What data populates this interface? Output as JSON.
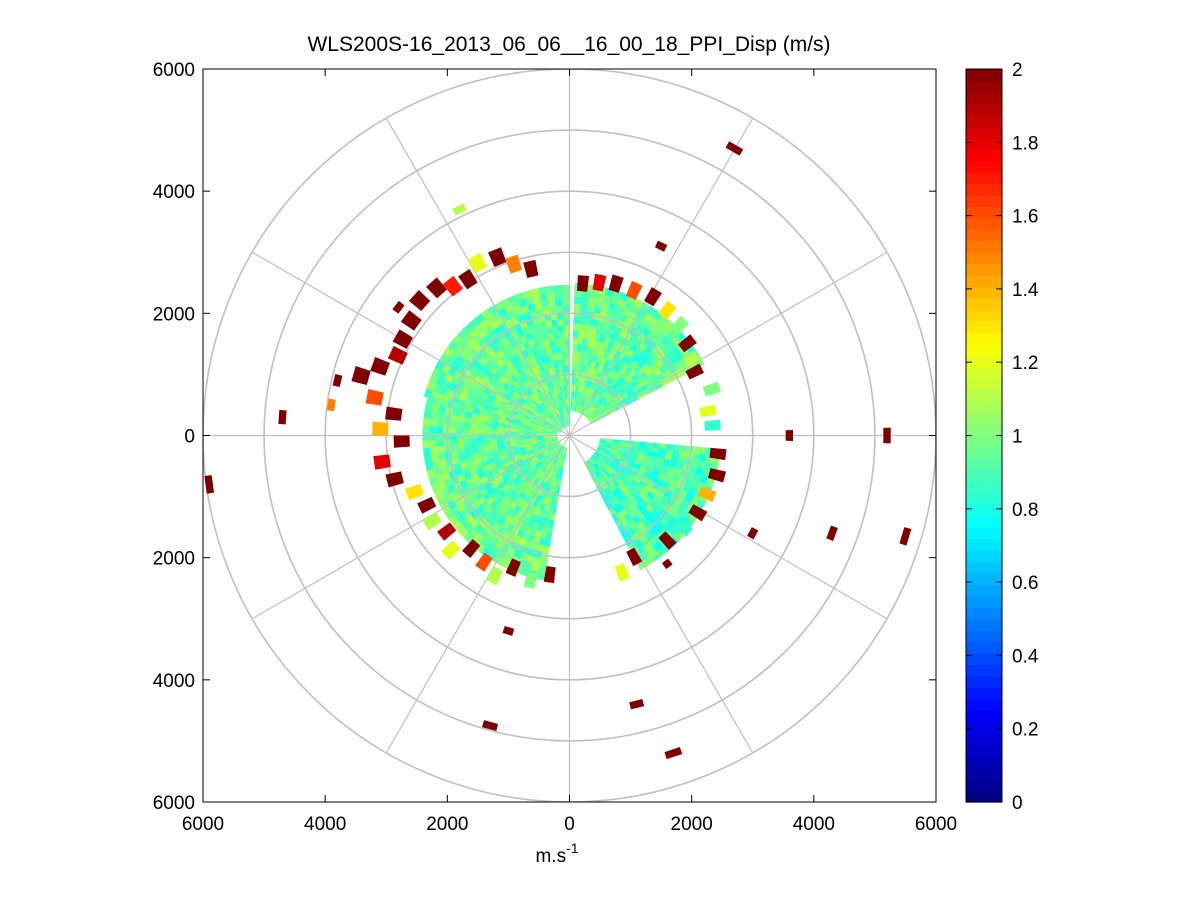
{
  "chart_data": {
    "type": "heatmap",
    "subtype": "polar-ppi-scan",
    "title": "WLS200S-16_2013_06_06__16_00_18_PPI_Disp (m/s)",
    "xlabel": "m.s",
    "xlabel_superscript": "-1",
    "ylabel": "",
    "xlim": [
      -6000,
      6000
    ],
    "ylim": [
      -6000,
      6000
    ],
    "x_tick_values": [
      -6000,
      -4000,
      -2000,
      0,
      2000,
      4000,
      6000
    ],
    "x_tick_labels": [
      "6000",
      "4000",
      "2000",
      "0",
      "2000",
      "4000",
      "6000"
    ],
    "y_tick_values": [
      6000,
      4000,
      2000,
      0,
      -2000,
      -4000,
      -6000
    ],
    "y_tick_labels": [
      "6000",
      "4000",
      "2000",
      "0",
      "2000",
      "4000",
      "6000"
    ],
    "range_rings": [
      1000,
      2000,
      3000,
      4000,
      5000,
      6000
    ],
    "spokes_deg": [
      0,
      30,
      60,
      90,
      120,
      150,
      180,
      210,
      240,
      270,
      300,
      330
    ],
    "colorbar": {
      "colormap": "jet",
      "min": 0,
      "max": 2,
      "tick_values": [
        0,
        0.2,
        0.4,
        0.6,
        0.8,
        1,
        1.2,
        1.4,
        1.6,
        1.8,
        2
      ],
      "tick_labels": [
        "0",
        "0.2",
        "0.4",
        "0.6",
        "0.8",
        "1",
        "1.2",
        "1.4",
        "1.6",
        "1.8",
        "2"
      ]
    },
    "main_field": {
      "description": "dense near-field returns, typical value",
      "typical_value": 0.95,
      "sectors": [
        {
          "az_start": 285,
          "az_end": 358,
          "r_min": 150,
          "r_max": 2400,
          "value": 0.95
        },
        {
          "az_start": 2,
          "az_end": 60,
          "r_min": 400,
          "r_max": 2400,
          "value": 0.95
        },
        {
          "az_start": 95,
          "az_end": 150,
          "r_min": 500,
          "r_max": 2400,
          "value": 0.9
        },
        {
          "az_start": 190,
          "az_end": 285,
          "r_min": 200,
          "r_max": 2400,
          "value": 0.95
        }
      ]
    },
    "edge_cells": [
      {
        "az": 300,
        "r": 3150,
        "value": 2.0
      },
      {
        "az": 306,
        "r": 3200,
        "value": 2.0
      },
      {
        "az": 312,
        "r": 3300,
        "value": 2.0
      },
      {
        "az": 318,
        "r": 3250,
        "value": 2.0
      },
      {
        "az": 322,
        "r": 3100,
        "value": 1.7
      },
      {
        "az": 327,
        "r": 3050,
        "value": 2.0
      },
      {
        "az": 332,
        "r": 3200,
        "value": 1.2
      },
      {
        "az": 338,
        "r": 3150,
        "value": 2.0
      },
      {
        "az": 342,
        "r": 2950,
        "value": 1.5
      },
      {
        "az": 347,
        "r": 2800,
        "value": 2.0
      },
      {
        "az": 295,
        "r": 3100,
        "value": 1.9
      },
      {
        "az": 290,
        "r": 3300,
        "value": 2.0
      },
      {
        "az": 286,
        "r": 3550,
        "value": 2.0
      },
      {
        "az": 281,
        "r": 3250,
        "value": 1.6
      },
      {
        "az": 277,
        "r": 2900,
        "value": 2.0
      },
      {
        "az": 272,
        "r": 3100,
        "value": 1.4
      },
      {
        "az": 268,
        "r": 2750,
        "value": 2.0
      },
      {
        "az": 262,
        "r": 3100,
        "value": 1.8
      },
      {
        "az": 256,
        "r": 2950,
        "value": 2.0
      },
      {
        "az": 250,
        "r": 2700,
        "value": 1.3
      },
      {
        "az": 244,
        "r": 2600,
        "value": 2.0
      },
      {
        "az": 238,
        "r": 2650,
        "value": 1.1
      },
      {
        "az": 232,
        "r": 2550,
        "value": 1.9
      },
      {
        "az": 226,
        "r": 2700,
        "value": 1.2
      },
      {
        "az": 221,
        "r": 2450,
        "value": 2.0
      },
      {
        "az": 214,
        "r": 2500,
        "value": 1.6
      },
      {
        "az": 208,
        "r": 2600,
        "value": 1.1
      },
      {
        "az": 203,
        "r": 2350,
        "value": 2.0
      },
      {
        "az": 5,
        "r": 2500,
        "value": 2.0
      },
      {
        "az": 11,
        "r": 2550,
        "value": 1.8
      },
      {
        "az": 17,
        "r": 2600,
        "value": 2.0
      },
      {
        "az": 24,
        "r": 2600,
        "value": 1.6
      },
      {
        "az": 31,
        "r": 2650,
        "value": 2.0
      },
      {
        "az": 38,
        "r": 2600,
        "value": 1.3
      },
      {
        "az": 45,
        "r": 2550,
        "value": 1.0
      },
      {
        "az": 52,
        "r": 2450,
        "value": 2.0
      },
      {
        "az": 58,
        "r": 2350,
        "value": 1.1
      },
      {
        "az": 63,
        "r": 2300,
        "value": 2.0
      },
      {
        "az": 72,
        "r": 2450,
        "value": 1.0
      },
      {
        "az": 80,
        "r": 2300,
        "value": 1.2
      },
      {
        "az": 86,
        "r": 2350,
        "value": 0.85
      },
      {
        "az": 97,
        "r": 2450,
        "value": 2.0
      },
      {
        "az": 105,
        "r": 2500,
        "value": 2.0
      },
      {
        "az": 113,
        "r": 2450,
        "value": 1.4
      },
      {
        "az": 121,
        "r": 2450,
        "value": 2.0
      },
      {
        "az": 129,
        "r": 2400,
        "value": 0.85
      },
      {
        "az": 137,
        "r": 2350,
        "value": 2.0
      },
      {
        "az": 145,
        "r": 2300,
        "value": 1.0
      },
      {
        "az": 152,
        "r": 2250,
        "value": 2.0
      },
      {
        "az": 159,
        "r": 2400,
        "value": 1.2
      },
      {
        "az": 195,
        "r": 2450,
        "value": 1.0
      },
      {
        "az": 188,
        "r": 2300,
        "value": 2.0
      }
    ],
    "isolated_returns": [
      {
        "x": 2700,
        "y": 4700,
        "value": 2.0
      },
      {
        "x": 1500,
        "y": 3100,
        "value": 2.0
      },
      {
        "x": -1800,
        "y": 3700,
        "value": 1.1
      },
      {
        "x": -2800,
        "y": 2100,
        "value": 2.0
      },
      {
        "x": -3800,
        "y": 900,
        "value": 2.0
      },
      {
        "x": -3900,
        "y": 500,
        "value": 1.5
      },
      {
        "x": -4700,
        "y": 300,
        "value": 2.0
      },
      {
        "x": -5900,
        "y": -800,
        "value": 2.0
      },
      {
        "x": 3600,
        "y": 0,
        "value": 2.0
      },
      {
        "x": 5200,
        "y": 0,
        "value": 2.0
      },
      {
        "x": 3000,
        "y": -1600,
        "value": 2.0
      },
      {
        "x": 4300,
        "y": -1600,
        "value": 2.0
      },
      {
        "x": 5500,
        "y": -1650,
        "value": 2.0
      },
      {
        "x": 1600,
        "y": -2100,
        "value": 2.0
      },
      {
        "x": -1000,
        "y": -3200,
        "value": 2.0
      },
      {
        "x": 1100,
        "y": -4400,
        "value": 2.0
      },
      {
        "x": -1300,
        "y": -4750,
        "value": 2.0
      },
      {
        "x": 1700,
        "y": -5200,
        "value": 2.0
      }
    ]
  }
}
